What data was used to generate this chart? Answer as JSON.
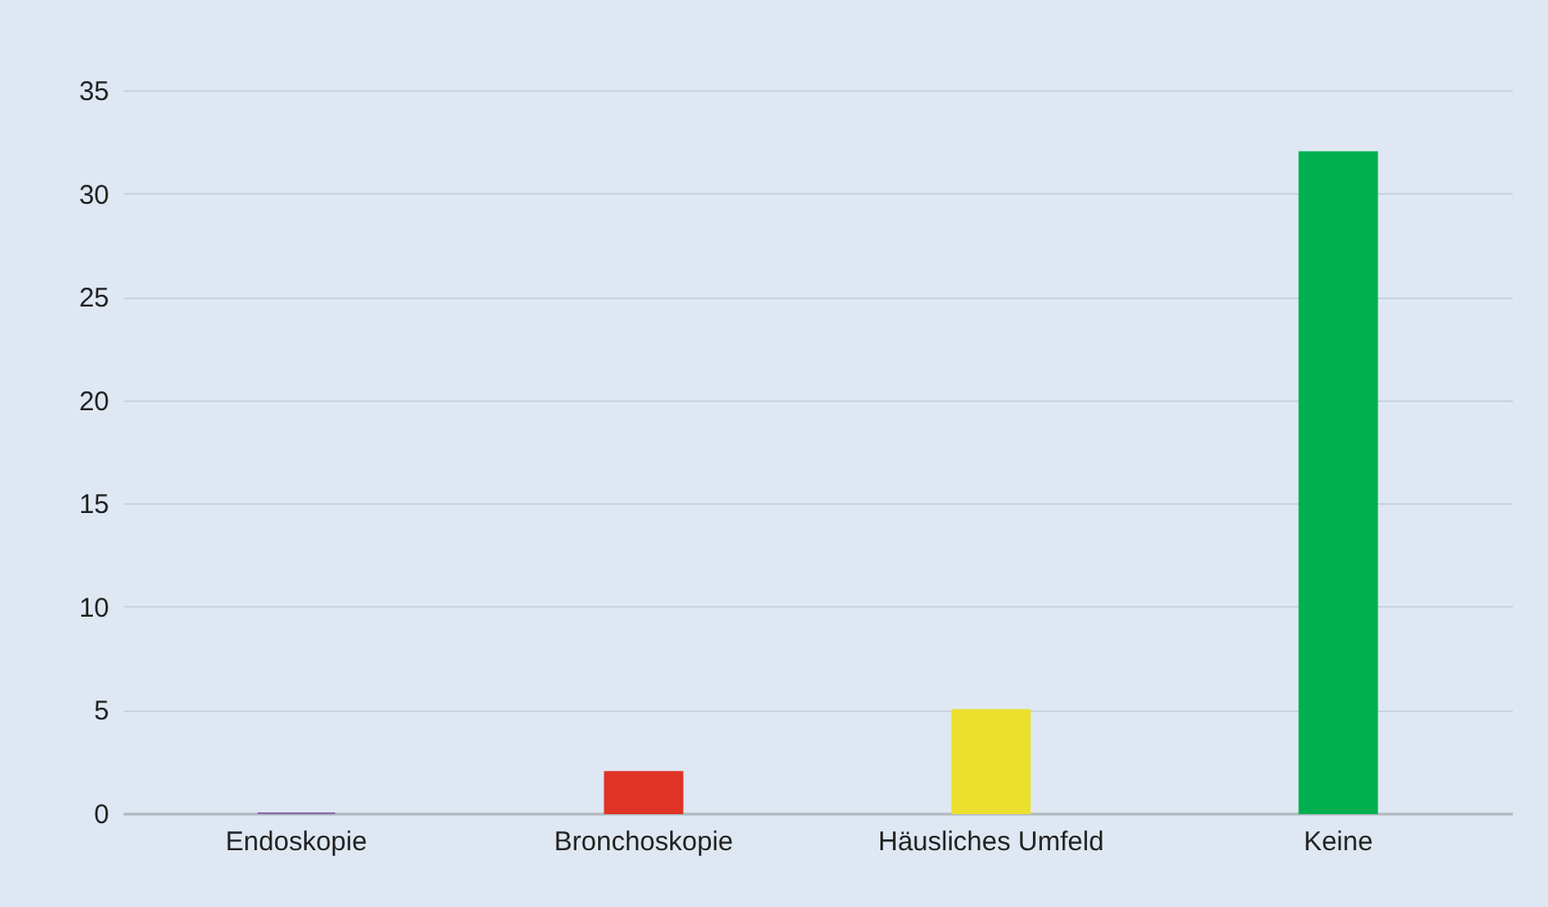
{
  "chart_data": {
    "type": "bar",
    "categories": [
      "Endoskopie",
      "Bronchoskopie",
      "Häusliches Umfeld",
      "Keine"
    ],
    "values": [
      0,
      2,
      5,
      32
    ],
    "colors": [
      "#8e6bb0",
      "#e03326",
      "#ece02e",
      "#00b050"
    ],
    "ylim": [
      0,
      35
    ],
    "yticks": [
      0,
      5,
      10,
      15,
      20,
      25,
      30,
      35
    ],
    "grid": "y"
  }
}
